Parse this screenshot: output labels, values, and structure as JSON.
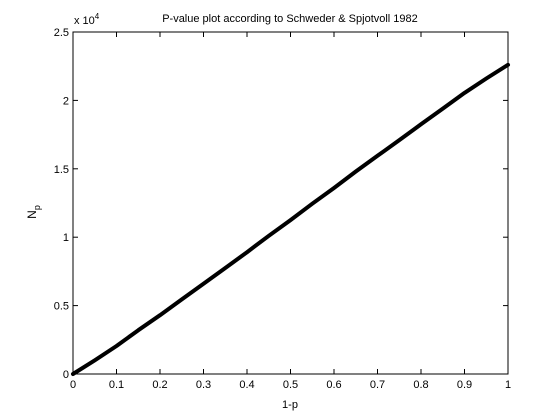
{
  "chart_data": {
    "type": "line",
    "title": "P-value plot according to Schweder & Spjotvoll 1982",
    "xlabel": "1-p",
    "ylabel_main": "N",
    "ylabel_sub": "p",
    "y_multiplier_base": "x 10",
    "y_multiplier_exp": "4",
    "xlim": [
      0,
      1
    ],
    "ylim": [
      0,
      25000
    ],
    "xticks": [
      0,
      0.1,
      0.2,
      0.3,
      0.4,
      0.5,
      0.6,
      0.7,
      0.8,
      0.9,
      1
    ],
    "xtick_labels": [
      "0",
      "0.1",
      "0.2",
      "0.3",
      "0.4",
      "0.5",
      "0.6",
      "0.7",
      "0.8",
      "0.9",
      "1"
    ],
    "yticks": [
      0,
      5000,
      10000,
      15000,
      20000,
      25000
    ],
    "ytick_labels": [
      "0",
      "0.5",
      "1",
      "1.5",
      "2",
      "2.5"
    ],
    "grid": false,
    "series": [
      {
        "color": "#000000",
        "x": [
          0,
          0.05,
          0.1,
          0.15,
          0.2,
          0.25,
          0.3,
          0.35,
          0.4,
          0.45,
          0.5,
          0.55,
          0.6,
          0.65,
          0.7,
          0.75,
          0.8,
          0.85,
          0.9,
          0.95,
          1
        ],
        "y": [
          0,
          1000,
          2050,
          3200,
          4300,
          5450,
          6600,
          7750,
          8900,
          10100,
          11250,
          12450,
          13600,
          14800,
          15950,
          17100,
          18250,
          19400,
          20550,
          21600,
          22600
        ]
      }
    ]
  }
}
